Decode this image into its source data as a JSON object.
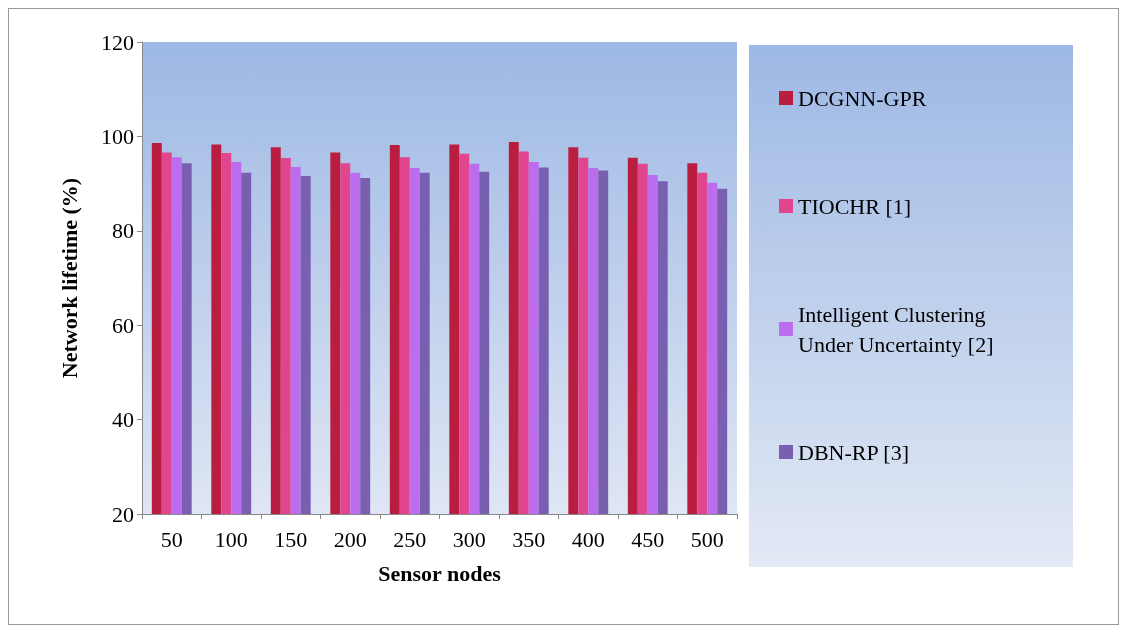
{
  "chart_data": {
    "type": "bar",
    "xlabel": "Sensor nodes",
    "ylabel": "Network lifetime (%)",
    "categories": [
      "50",
      "100",
      "150",
      "200",
      "250",
      "300",
      "350",
      "400",
      "450",
      "500"
    ],
    "series": [
      {
        "name": "DCGNN-GPR",
        "color": "#b91e41",
        "values": [
          98.6,
          98.3,
          97.7,
          96.6,
          98.2,
          98.3,
          98.8,
          97.7,
          95.5,
          94.3
        ]
      },
      {
        "name": "TIOCHR [1]",
        "color": "#e0458e",
        "values": [
          96.6,
          96.5,
          95.4,
          94.3,
          95.6,
          96.3,
          96.8,
          95.5,
          94.2,
          92.3
        ]
      },
      {
        "name": "Intelligent Clustering Under Uncertainty [2]",
        "color": "#bb6ded",
        "values": [
          95.6,
          94.6,
          93.5,
          92.3,
          93.3,
          94.2,
          94.6,
          93.3,
          91.8,
          90.2
        ]
      },
      {
        "name": "DBN-RP [3]",
        "color": "#785fb0",
        "values": [
          94.3,
          92.3,
          91.6,
          91.2,
          92.3,
          92.5,
          93.4,
          92.8,
          90.5,
          88.9
        ]
      }
    ],
    "ylim": [
      20,
      120
    ],
    "yticks": [
      20,
      40,
      60,
      80,
      100,
      120
    ],
    "grid": false,
    "legend": "right"
  }
}
